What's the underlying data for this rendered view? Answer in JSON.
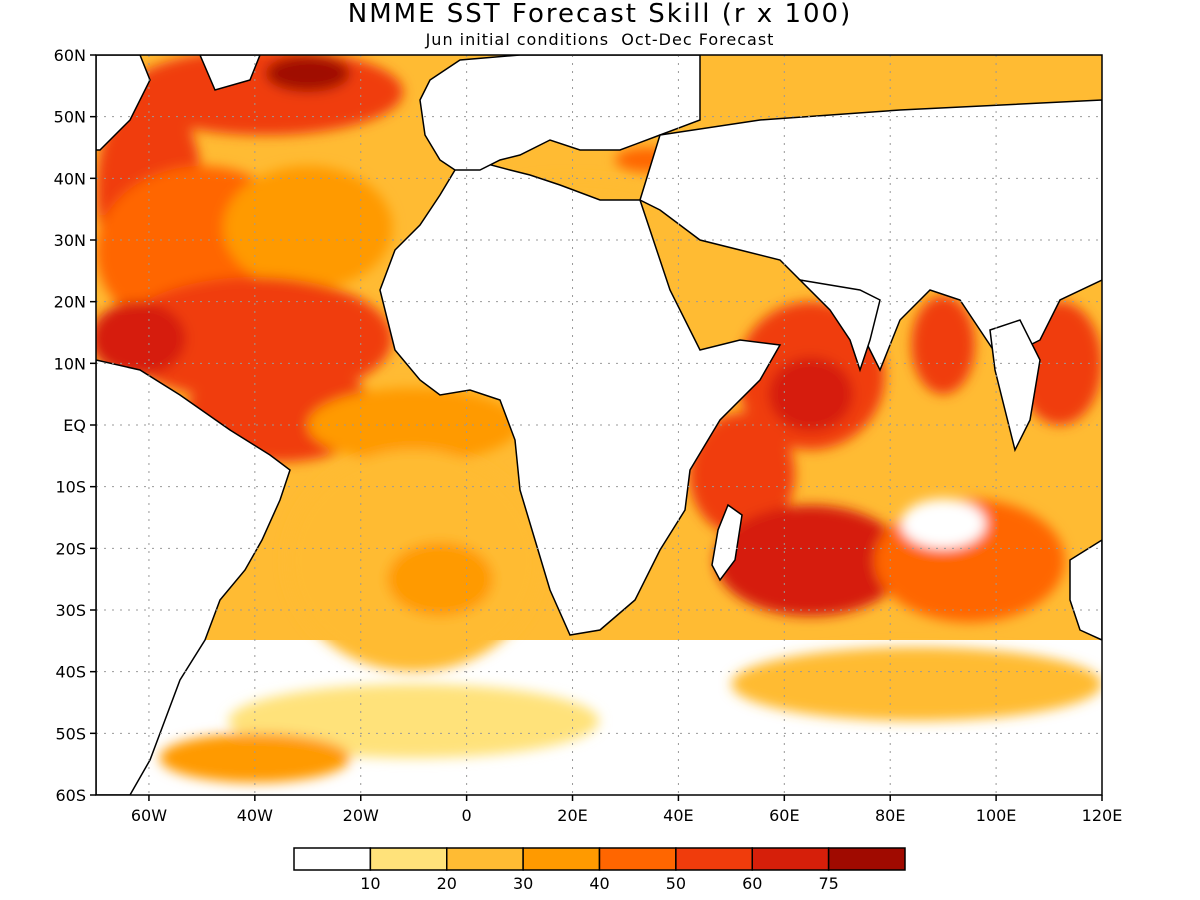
{
  "title": "NMME SST Forecast Skill (r x 100)",
  "subtitle": "Jun initial conditions  Oct-Dec Forecast",
  "lat_labels": [
    "60N",
    "50N",
    "40N",
    "30N",
    "20N",
    "10N",
    "EQ",
    "10S",
    "20S",
    "30S",
    "40S",
    "50S",
    "60S"
  ],
  "lon_labels": [
    "60W",
    "40W",
    "20W",
    "0",
    "20E",
    "40E",
    "60E",
    "80E",
    "100E",
    "120E"
  ],
  "lat_values": [
    60,
    50,
    40,
    30,
    20,
    10,
    0,
    -10,
    -20,
    -30,
    -40,
    -50,
    -60
  ],
  "lon_values": [
    -60,
    -40,
    -20,
    0,
    20,
    40,
    60,
    80,
    100,
    120
  ],
  "extent": {
    "lon_min": -70,
    "lon_max": 120,
    "lat_min": -60,
    "lat_max": 60
  },
  "colorbar": {
    "labels": [
      "10",
      "20",
      "30",
      "40",
      "50",
      "60",
      "75"
    ],
    "colors": [
      "#ffffff",
      "#ffe27a",
      "#ffbb33",
      "#ff9a00",
      "#ff6600",
      "#f03c0c",
      "#d61f0a",
      "#a00a00"
    ]
  },
  "regions": [
    {
      "name": "north-atlantic-subpolar",
      "lon": -38,
      "lat": 54,
      "rx": 26,
      "ry": 7,
      "level": 5
    },
    {
      "name": "north-atlantic-core",
      "lon": -30,
      "lat": 57,
      "rx": 8,
      "ry": 3,
      "level": 7
    },
    {
      "name": "labrador-sea",
      "lon": -60,
      "lat": 38,
      "rx": 10,
      "ry": 16,
      "level": 5
    },
    {
      "name": "north-atlantic-west",
      "lon": -50,
      "lat": 28,
      "rx": 20,
      "ry": 14,
      "level": 4
    },
    {
      "name": "north-atlantic-mid",
      "lon": -30,
      "lat": 32,
      "rx": 16,
      "ry": 10,
      "level": 3
    },
    {
      "name": "tropical-atlantic-north",
      "lon": -40,
      "lat": 14,
      "rx": 26,
      "ry": 10,
      "level": 5
    },
    {
      "name": "caribbean",
      "lon": -62,
      "lat": 14,
      "rx": 9,
      "ry": 6,
      "level": 6
    },
    {
      "name": "equatorial-atlantic-west",
      "lon": -35,
      "lat": 2,
      "rx": 18,
      "ry": 8,
      "level": 5
    },
    {
      "name": "equatorial-atlantic-east",
      "lon": -10,
      "lat": 0,
      "rx": 20,
      "ry": 6,
      "level": 3
    },
    {
      "name": "south-atlantic",
      "lon": -10,
      "lat": -22,
      "rx": 24,
      "ry": 18,
      "level": 2
    },
    {
      "name": "south-atlantic-center",
      "lon": -5,
      "lat": -25,
      "rx": 10,
      "ry": 6,
      "level": 3
    },
    {
      "name": "mediterranean",
      "lon": 20,
      "lat": 37,
      "rx": 15,
      "ry": 3,
      "level": 2
    },
    {
      "name": "black-sea",
      "lon": 34,
      "lat": 43,
      "rx": 6,
      "ry": 2,
      "level": 4
    },
    {
      "name": "arabian-sea",
      "lon": 65,
      "lat": 8,
      "rx": 14,
      "ry": 12,
      "level": 5
    },
    {
      "name": "arabian-sea-core",
      "lon": 65,
      "lat": 5,
      "rx": 8,
      "ry": 6,
      "level": 6
    },
    {
      "name": "bay-of-bengal",
      "lon": 90,
      "lat": 13,
      "rx": 6,
      "ry": 8,
      "level": 5
    },
    {
      "name": "western-indian",
      "lon": 52,
      "lat": -8,
      "rx": 10,
      "ry": 10,
      "level": 5
    },
    {
      "name": "south-indian",
      "lon": 65,
      "lat": -22,
      "rx": 18,
      "ry": 9,
      "level": 6
    },
    {
      "name": "south-indian-east",
      "lon": 95,
      "lat": -22,
      "rx": 18,
      "ry": 10,
      "level": 4
    },
    {
      "name": "south-indian-low",
      "lon": 90,
      "lat": -16,
      "rx": 8,
      "ry": 4,
      "level": 0
    },
    {
      "name": "south-china-sea",
      "lon": 112,
      "lat": 10,
      "rx": 8,
      "ry": 10,
      "level": 5
    },
    {
      "name": "southern-ocean-indian",
      "lon": 85,
      "lat": -42,
      "rx": 35,
      "ry": 6,
      "level": 2
    },
    {
      "name": "southern-ocean-atlantic",
      "lon": -10,
      "lat": -48,
      "rx": 35,
      "ry": 6,
      "level": 1
    },
    {
      "name": "southern-ocean-west",
      "lon": -40,
      "lat": -54,
      "rx": 18,
      "ry": 4,
      "level": 3
    }
  ]
}
